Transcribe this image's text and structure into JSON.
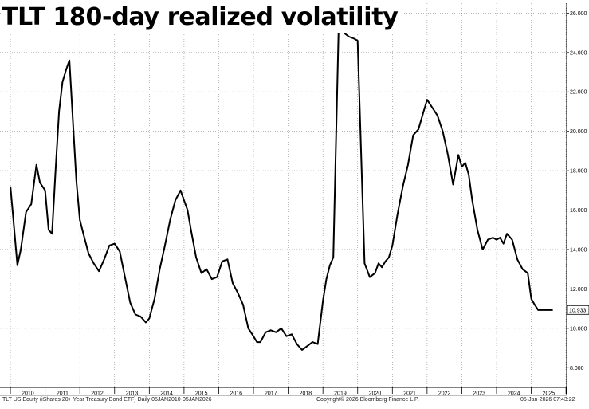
{
  "chart_data": {
    "type": "line",
    "title": "TLT 180-day realized volatility",
    "xlabel": "",
    "ylabel": "",
    "ylim": [
      7.0,
      26.5
    ],
    "y_ticks": [
      "8.000",
      "10.000",
      "12.000",
      "14.000",
      "16.000",
      "18.000",
      "20.000",
      "22.000",
      "24.000",
      "26.000"
    ],
    "x_ticks": [
      "2010",
      "2011",
      "2012",
      "2013",
      "2014",
      "2015",
      "2016",
      "2017",
      "2018",
      "2019",
      "2020",
      "2021",
      "2022",
      "2023",
      "2024",
      "2025"
    ],
    "last_value_label": "10.933",
    "grid": true,
    "series": [
      {
        "name": "",
        "x": [
          2010.0,
          2010.08,
          2010.2,
          2010.3,
          2010.45,
          2010.6,
          2010.75,
          2010.85,
          2011.0,
          2011.1,
          2011.2,
          2011.3,
          2011.4,
          2011.5,
          2011.6,
          2011.7,
          2011.8,
          2011.9,
          2012.0,
          2012.1,
          2012.25,
          2012.4,
          2012.55,
          2012.7,
          2012.85,
          2013.0,
          2013.15,
          2013.3,
          2013.45,
          2013.6,
          2013.75,
          2013.9,
          2014.0,
          2014.15,
          2014.3,
          2014.45,
          2014.6,
          2014.75,
          2014.9,
          2015.0,
          2015.1,
          2015.2,
          2015.35,
          2015.5,
          2015.65,
          2015.8,
          2015.95,
          2016.1,
          2016.25,
          2016.4,
          2016.55,
          2016.7,
          2016.85,
          2017.0,
          2017.1,
          2017.2,
          2017.35,
          2017.5,
          2017.65,
          2017.8,
          2017.95,
          2018.1,
          2018.25,
          2018.4,
          2018.55,
          2018.7,
          2018.85,
          2019.0,
          2019.1,
          2019.2,
          2019.3,
          2019.45,
          2019.6,
          2019.75,
          2019.9,
          2020.0,
          2020.2,
          2020.35,
          2020.5,
          2020.6,
          2020.65,
          2020.7,
          2020.8,
          2020.9,
          2021.0,
          2021.15,
          2021.3,
          2021.45,
          2021.6,
          2021.75,
          2021.9,
          2022.0,
          2022.15,
          2022.3,
          2022.45,
          2022.6,
          2022.75,
          2022.9,
          2023.0,
          2023.1,
          2023.2,
          2023.3,
          2023.45,
          2023.6,
          2023.75,
          2023.9,
          2024.0,
          2024.1,
          2024.2,
          2024.3,
          2024.45,
          2024.6,
          2024.75,
          2024.9,
          2025.0,
          2025.1,
          2025.2,
          2025.35,
          2025.5,
          2025.62
        ],
        "values": [
          17.2,
          15.6,
          13.2,
          14.0,
          15.9,
          16.3,
          18.3,
          17.4,
          17.0,
          15.0,
          14.8,
          18.0,
          21.0,
          22.5,
          23.1,
          23.6,
          20.5,
          17.5,
          15.5,
          14.8,
          13.8,
          13.3,
          12.9,
          13.5,
          14.2,
          14.3,
          13.9,
          12.6,
          11.3,
          10.7,
          10.6,
          10.3,
          10.5,
          11.5,
          13.0,
          14.2,
          15.5,
          16.5,
          17.0,
          16.5,
          16.0,
          15.0,
          13.6,
          12.8,
          13.0,
          12.5,
          12.6,
          13.4,
          13.5,
          12.3,
          11.8,
          11.2,
          10.0,
          9.6,
          9.3,
          9.3,
          9.8,
          9.9,
          9.8,
          10.0,
          9.6,
          9.7,
          9.2,
          8.9,
          9.1,
          9.3,
          9.2,
          11.4,
          12.5,
          13.2,
          13.6,
          25.1,
          25.0,
          24.8,
          24.7,
          24.6,
          13.3,
          12.6,
          12.8,
          13.3,
          13.2,
          13.1,
          13.4,
          13.6,
          14.2,
          15.8,
          17.2,
          18.3,
          19.8,
          20.1,
          21.0,
          21.6,
          21.2,
          20.8,
          20.0,
          18.8,
          17.3,
          18.8,
          18.2,
          18.4,
          17.8,
          16.5,
          15.0,
          14.0,
          14.5,
          14.6,
          14.5,
          14.6,
          14.3,
          14.8,
          14.5,
          13.5,
          13.0,
          12.8,
          11.5,
          11.2,
          10.93,
          10.93,
          10.93,
          10.93
        ]
      }
    ]
  },
  "footer": {
    "left": "TLT US Equity (iShares 20+ Year Treasury Bond ETF) Daily 05JAN2010-05JAN2026",
    "center": "Copyright© 2026 Bloomberg Finance L.P.",
    "right": "05-Jan-2026 07:43:22"
  },
  "colors": {
    "line": "#000000",
    "grid": "#8c8c8c",
    "axis": "#000000",
    "background": "#ffffff"
  }
}
